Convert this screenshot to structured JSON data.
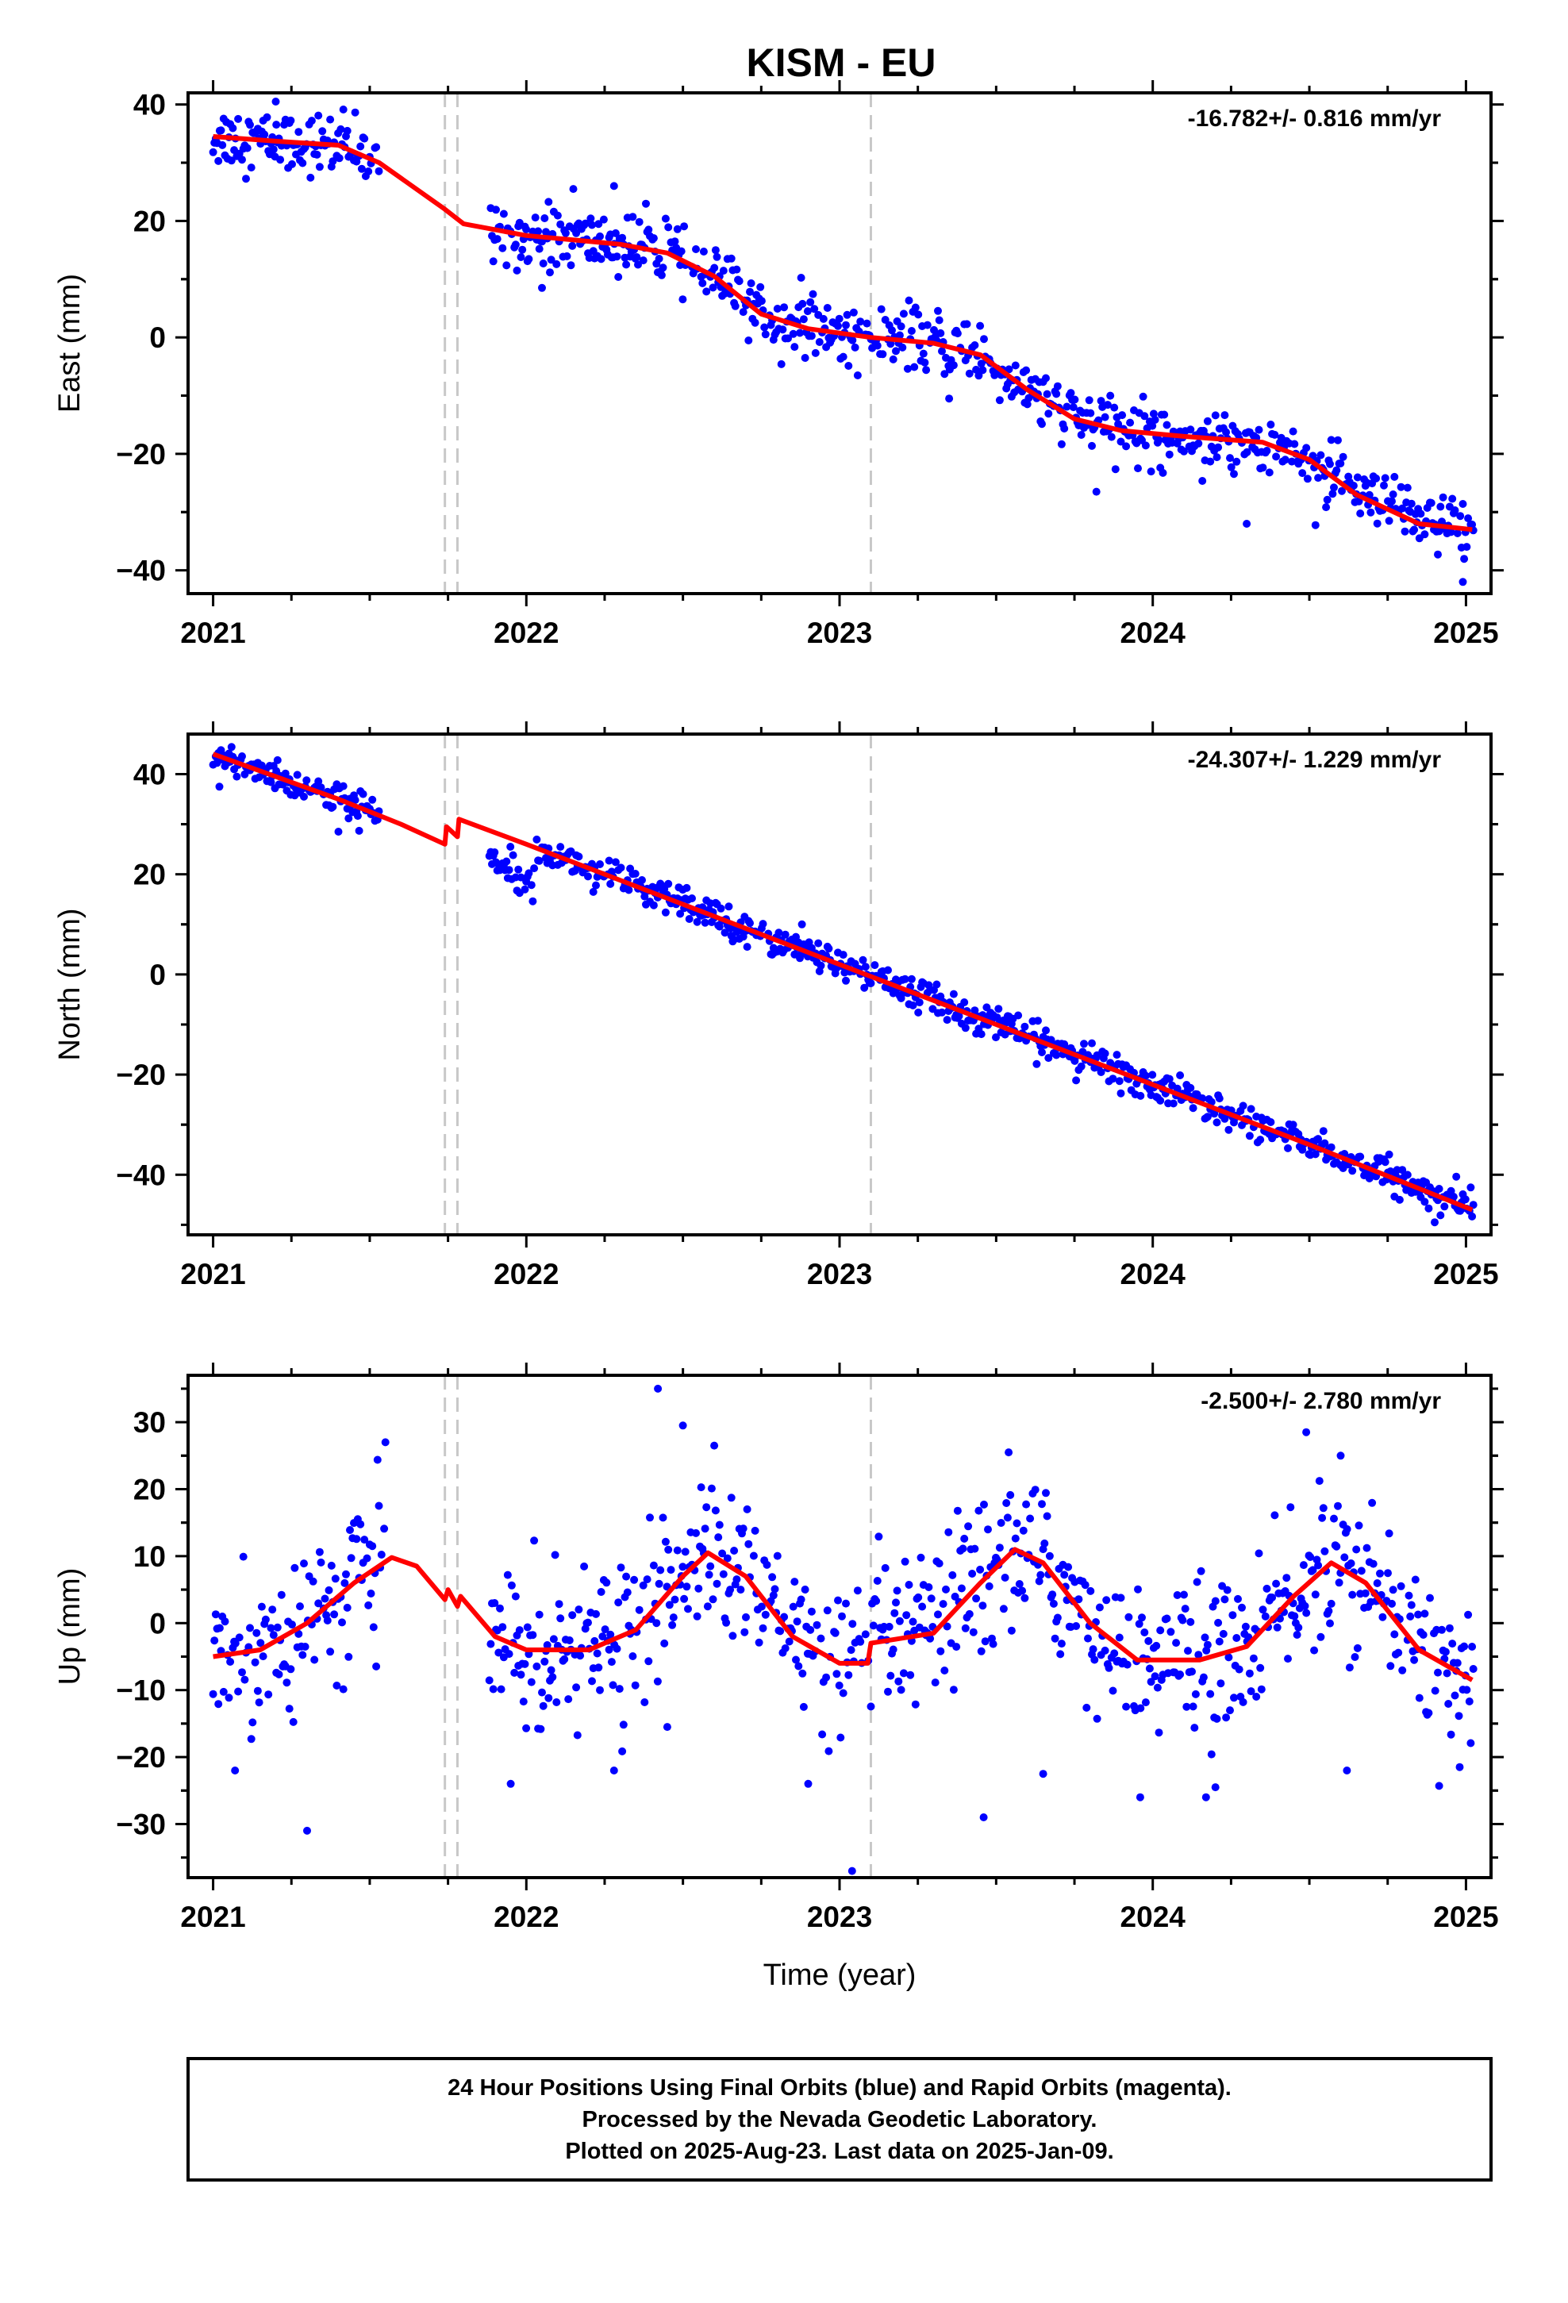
{
  "title": "KISM - EU",
  "footer": {
    "lines": [
      "24 Hour Positions Using Final Orbits (blue) and Rapid Orbits (magenta).",
      "Processed by the Nevada Geodetic Laboratory.",
      "Plotted on 2025-Aug-23. Last data on 2025-Jan-09."
    ]
  },
  "colors": {
    "data_points": "#0000ff",
    "model_fit": "#ff0000",
    "event_lines": "#c8c8c8",
    "frame": "#000000"
  },
  "chart_data": [
    {
      "type": "scatter",
      "component": "East",
      "title": "",
      "xlabel": "",
      "ylabel": "East (mm)",
      "rate_text": "-16.782+/- 0.816 mm/yr",
      "xlim": [
        2020.92,
        2025.08
      ],
      "ylim": [
        -44,
        42
      ],
      "xticks": [
        2021,
        2022,
        2023,
        2024,
        2025
      ],
      "xtick_labels": [
        "2021",
        "2022",
        "2023",
        "2024",
        "2025"
      ],
      "yticks": [
        -40,
        -20,
        0,
        20,
        40
      ],
      "ytick_labels": [
        "−40",
        "−20",
        "0",
        "20",
        "40"
      ],
      "event_lines_x": [
        2021.74,
        2021.78,
        2023.1
      ],
      "data_gap": [
        2021.53,
        2021.88
      ],
      "trend_points": [
        [
          2021.0,
          34.5
        ],
        [
          2021.2,
          33.7
        ],
        [
          2021.4,
          33.0
        ],
        [
          2021.53,
          30.0
        ],
        [
          2021.74,
          22.0
        ],
        [
          2021.8,
          19.5
        ],
        [
          2022.0,
          17.5
        ],
        [
          2022.3,
          16.0
        ],
        [
          2022.45,
          14.5
        ],
        [
          2022.6,
          10.5
        ],
        [
          2022.75,
          4.0
        ],
        [
          2022.9,
          1.5
        ],
        [
          2023.1,
          0.0
        ],
        [
          2023.3,
          -1.0
        ],
        [
          2023.45,
          -3.0
        ],
        [
          2023.6,
          -9.0
        ],
        [
          2023.75,
          -14.0
        ],
        [
          2023.9,
          -16.0
        ],
        [
          2024.1,
          -17.0
        ],
        [
          2024.35,
          -18.0
        ],
        [
          2024.5,
          -21.0
        ],
        [
          2024.65,
          -27.0
        ],
        [
          2024.85,
          -32.0
        ],
        [
          2025.02,
          -33.0
        ]
      ],
      "scatter_spread": 2.6,
      "outliers": [
        [
          2021.2,
          40.5
        ],
        [
          2022.15,
          25.5
        ],
        [
          2022.28,
          26.0
        ],
        [
          2023.82,
          -26.5
        ],
        [
          2024.3,
          -32.0
        ],
        [
          2024.99,
          -42.0
        ],
        [
          2022.05,
          8.5
        ],
        [
          2023.35,
          -10.5
        ]
      ]
    },
    {
      "type": "scatter",
      "component": "North",
      "title": "",
      "xlabel": "",
      "ylabel": "North (mm)",
      "rate_text": "-24.307+/- 1.229 mm/yr",
      "xlim": [
        2020.92,
        2025.08
      ],
      "ylim": [
        -52,
        48
      ],
      "xticks": [
        2021,
        2022,
        2023,
        2024,
        2025
      ],
      "xtick_labels": [
        "2021",
        "2022",
        "2023",
        "2024",
        "2025"
      ],
      "yticks": [
        -40,
        -20,
        0,
        20,
        40
      ],
      "ytick_labels": [
        "−40",
        "−20",
        "0",
        "20",
        "40"
      ],
      "event_lines_x": [
        2021.74,
        2021.78,
        2023.1
      ],
      "data_gap": [
        2021.53,
        2021.88
      ],
      "trend_points": [
        [
          2021.0,
          44.0
        ],
        [
          2021.2,
          39.5
        ],
        [
          2021.4,
          35.0
        ],
        [
          2021.6,
          30.0
        ],
        [
          2021.74,
          26.0
        ],
        [
          2021.745,
          29.5
        ],
        [
          2021.78,
          27.5
        ],
        [
          2021.785,
          31.0
        ],
        [
          2022.0,
          26.0
        ],
        [
          2022.5,
          14.0
        ],
        [
          2023.0,
          2.0
        ],
        [
          2023.5,
          -10.0
        ],
        [
          2024.0,
          -22.0
        ],
        [
          2024.5,
          -34.0
        ],
        [
          2025.02,
          -47.0
        ]
      ],
      "scatter_spread": 1.6,
      "segment_offsets": [
        [
          2021.88,
          2022.03,
          -5.5
        ]
      ],
      "outliers": [
        [
          2021.4,
          28.5
        ],
        [
          2021.02,
          37.5
        ],
        [
          2022.88,
          10.0
        ],
        [
          2024.9,
          -49.5
        ]
      ]
    },
    {
      "type": "scatter",
      "component": "Up",
      "title": "",
      "xlabel": "Time (year)",
      "ylabel": "Up (mm)",
      "rate_text": "-2.500+/- 2.780 mm/yr",
      "xlim": [
        2020.92,
        2025.08
      ],
      "ylim": [
        -38,
        37
      ],
      "xticks": [
        2021,
        2022,
        2023,
        2024,
        2025
      ],
      "xtick_labels": [
        "2021",
        "2022",
        "2023",
        "2024",
        "2025"
      ],
      "yticks": [
        -30,
        -20,
        -10,
        0,
        10,
        20,
        30
      ],
      "ytick_labels": [
        "−30",
        "−20",
        "−10",
        "0",
        "10",
        "20",
        "30"
      ],
      "event_lines_x": [
        2021.74,
        2021.78,
        2023.1
      ],
      "data_gap": [
        2021.55,
        2021.88
      ],
      "trend_points": [
        [
          2021.0,
          -5.0
        ],
        [
          2021.15,
          -4.0
        ],
        [
          2021.3,
          0.0
        ],
        [
          2021.45,
          6.0
        ],
        [
          2021.57,
          9.8
        ],
        [
          2021.65,
          8.5
        ],
        [
          2021.74,
          3.5
        ],
        [
          2021.75,
          5.0
        ],
        [
          2021.78,
          2.5
        ],
        [
          2021.79,
          4.0
        ],
        [
          2021.9,
          -2.0
        ],
        [
          2022.0,
          -4.0
        ],
        [
          2022.2,
          -4.0
        ],
        [
          2022.35,
          -1.0
        ],
        [
          2022.5,
          7.0
        ],
        [
          2022.58,
          10.5
        ],
        [
          2022.7,
          7.0
        ],
        [
          2022.85,
          -2.0
        ],
        [
          2023.0,
          -6.0
        ],
        [
          2023.09,
          -6.0
        ],
        [
          2023.1,
          -3.0
        ],
        [
          2023.3,
          -1.5
        ],
        [
          2023.45,
          6.0
        ],
        [
          2023.56,
          11.0
        ],
        [
          2023.65,
          9.0
        ],
        [
          2023.8,
          0.0
        ],
        [
          2023.95,
          -5.5
        ],
        [
          2024.15,
          -5.5
        ],
        [
          2024.3,
          -3.5
        ],
        [
          2024.45,
          4.0
        ],
        [
          2024.57,
          9.0
        ],
        [
          2024.68,
          6.0
        ],
        [
          2024.85,
          -4.0
        ],
        [
          2025.02,
          -8.5
        ]
      ],
      "scatter_spread": 5.5,
      "outliers": [
        [
          2021.3,
          -31.0
        ],
        [
          2021.07,
          -22.0
        ],
        [
          2021.55,
          27.0
        ],
        [
          2022.42,
          35.0
        ],
        [
          2022.5,
          29.5
        ],
        [
          2022.6,
          26.5
        ],
        [
          2022.45,
          -15.5
        ],
        [
          2023.04,
          -37.0
        ],
        [
          2023.46,
          -29.0
        ],
        [
          2023.54,
          25.5
        ],
        [
          2023.65,
          -22.5
        ],
        [
          2023.96,
          -26.0
        ],
        [
          2024.17,
          -26.0
        ],
        [
          2024.2,
          -24.5
        ],
        [
          2024.49,
          28.5
        ],
        [
          2024.6,
          25.0
        ],
        [
          2024.62,
          -22.0
        ],
        [
          2024.98,
          -21.5
        ],
        [
          2021.95,
          -24.0
        ],
        [
          2022.28,
          -22.0
        ],
        [
          2022.9,
          -24.0
        ]
      ]
    }
  ]
}
